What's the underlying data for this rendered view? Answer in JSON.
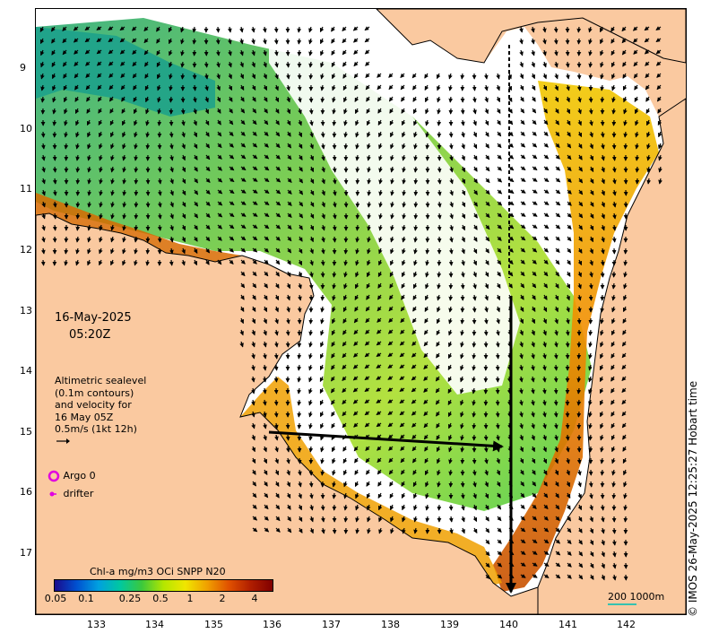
{
  "map": {
    "date": "16-May-2025",
    "time": "05:20Z",
    "info_lines": [
      "Altimetric sealevel",
      "(0.1m contours)",
      "and velocity for",
      "16 May 05Z",
      "0.5m/s (1kt 12h)"
    ],
    "legend": {
      "argo_label": "Argo 0",
      "drifter_label": "drifter",
      "argo_color": "#e000e0",
      "drifter_color": "#e000e0"
    },
    "colorbar": {
      "title": "Chl-a mg/m3 OCi SNPP N20",
      "ticks": [
        "0.05",
        "0.1",
        "0.25",
        "0.5",
        "1",
        "2",
        "4"
      ],
      "colors": [
        "#1a0a8c",
        "#0050d0",
        "#00a0e0",
        "#00c8a0",
        "#3cc83c",
        "#b4e600",
        "#f0e600",
        "#f0a000",
        "#e05000",
        "#b01e00",
        "#800000"
      ]
    },
    "scale_label": "200 1000m",
    "copyright": "© IMOS 26-May-2025 12:25:27 Hobart time",
    "lat_labels": [
      "9",
      "10",
      "11",
      "12",
      "13",
      "14",
      "15",
      "16",
      "17"
    ],
    "lon_labels": [
      "133",
      "134",
      "135",
      "136",
      "137",
      "138",
      "139",
      "140",
      "141",
      "142"
    ],
    "land_color": "#fac9a0",
    "ocean_color": "#ffffff"
  }
}
